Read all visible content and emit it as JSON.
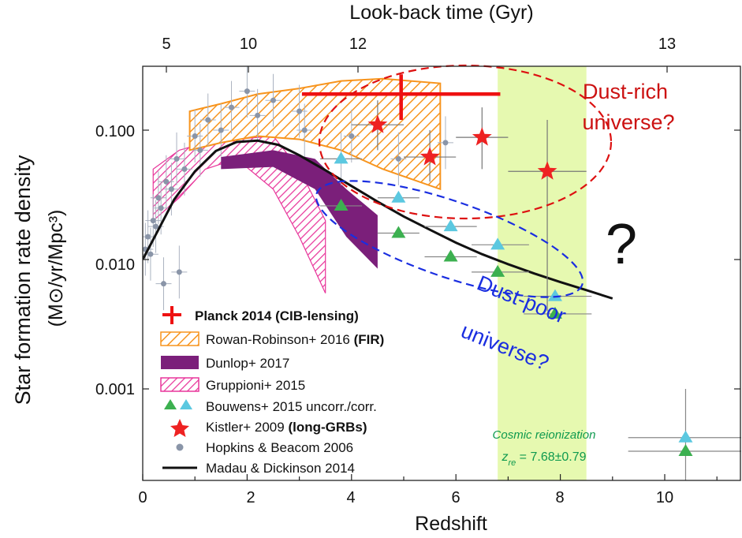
{
  "chart_data": {
    "type": "scatter",
    "title": "",
    "xlabel": "Redshift",
    "ylabel_main": "Star formation rate density",
    "ylabel_units": "(M⊙/yr/Mpc³)",
    "top_axis_label": "Look-back time (Gyr)",
    "xlim": [
      0,
      11.5
    ],
    "ylim": [
      0.00013,
      0.3
    ],
    "y_scale": "log",
    "x_ticks": [
      "0",
      "2",
      "4",
      "6",
      "8",
      "10"
    ],
    "y_ticks": [
      "0.001",
      "0.010",
      "0.100"
    ],
    "top_ticks": [
      "5",
      "10",
      "12",
      "13"
    ],
    "grid": false,
    "legend_position": "bottom-left",
    "reionization_band": {
      "x": [
        6.8,
        8.5
      ],
      "color": "#e6f9b0"
    },
    "series": [
      {
        "name": "Planck 2014 (CIB-lensing)",
        "marker": "cross",
        "color": "#ee1111",
        "points": [
          {
            "x": 4.95,
            "y": 0.19,
            "xlo": 3.05,
            "xhi": 6.85,
            "ylo": 0.12,
            "yhi": 0.27
          }
        ]
      },
      {
        "name": "Rowan-Robinson+ 2016",
        "name_suffix": "(FIR)",
        "marker": "hatched-band",
        "color": "#f7941d",
        "upper": [
          [
            0.9,
            0.14
          ],
          [
            1.5,
            0.16
          ],
          [
            2.2,
            0.19
          ],
          [
            3.0,
            0.21
          ],
          [
            3.8,
            0.24
          ],
          [
            4.6,
            0.25
          ],
          [
            5.7,
            0.23
          ]
        ],
        "lower": [
          [
            0.9,
            0.07
          ],
          [
            1.5,
            0.08
          ],
          [
            2.2,
            0.09
          ],
          [
            3.0,
            0.085
          ],
          [
            3.8,
            0.07
          ],
          [
            4.6,
            0.05
          ],
          [
            5.7,
            0.035
          ]
        ]
      },
      {
        "name": "Dunlop+ 2017",
        "marker": "band",
        "color": "#7b1f7a",
        "upper": [
          [
            1.5,
            0.062
          ],
          [
            2.5,
            0.07
          ],
          [
            3.3,
            0.06
          ],
          [
            3.9,
            0.035
          ],
          [
            4.5,
            0.022
          ]
        ],
        "lower": [
          [
            1.5,
            0.05
          ],
          [
            2.5,
            0.052
          ],
          [
            3.3,
            0.035
          ],
          [
            3.9,
            0.015
          ],
          [
            4.5,
            0.0085
          ]
        ]
      },
      {
        "name": "Gruppioni+ 2015",
        "marker": "hatched-band",
        "color": "#e8369b",
        "upper": [
          [
            0.2,
            0.05
          ],
          [
            0.7,
            0.07
          ],
          [
            1.2,
            0.08
          ],
          [
            1.8,
            0.085
          ],
          [
            2.5,
            0.09
          ],
          [
            3.0,
            0.05
          ],
          [
            3.5,
            0.02
          ]
        ],
        "lower": [
          [
            0.2,
            0.02
          ],
          [
            0.7,
            0.03
          ],
          [
            1.2,
            0.05
          ],
          [
            1.8,
            0.06
          ],
          [
            2.5,
            0.035
          ],
          [
            3.0,
            0.015
          ],
          [
            3.5,
            0.0055
          ]
        ]
      },
      {
        "name": "Bouwens+ 2015 uncorr./corr.",
        "marker": "triangle",
        "colors": [
          "#3cb050",
          "#5bc8e0"
        ],
        "uncorrected": [
          {
            "x": 3.8,
            "y": 0.026,
            "xlo": 3.4,
            "xhi": 4.2
          },
          {
            "x": 4.9,
            "y": 0.016,
            "xlo": 4.5,
            "xhi": 5.3
          },
          {
            "x": 5.9,
            "y": 0.0105,
            "xlo": 5.4,
            "xhi": 6.4
          },
          {
            "x": 6.8,
            "y": 0.008,
            "xlo": 6.3,
            "xhi": 7.4
          },
          {
            "x": 7.9,
            "y": 0.0038,
            "xlo": 7.3,
            "xhi": 8.6
          },
          {
            "x": 10.4,
            "y": 0.00033,
            "xlo": 9.3,
            "xhi": 11.5
          }
        ],
        "corrected": [
          {
            "x": 3.8,
            "y": 0.06,
            "xlo": 3.4,
            "xhi": 4.2
          },
          {
            "x": 4.9,
            "y": 0.03,
            "xlo": 4.5,
            "xhi": 5.3
          },
          {
            "x": 5.9,
            "y": 0.018,
            "xlo": 5.4,
            "xhi": 6.4
          },
          {
            "x": 6.8,
            "y": 0.013,
            "xlo": 6.3,
            "xhi": 7.4
          },
          {
            "x": 7.9,
            "y": 0.0052,
            "xlo": 7.3,
            "xhi": 8.6
          },
          {
            "x": 10.4,
            "y": 0.00042,
            "xlo": 9.3,
            "xhi": 11.5,
            "ylo": 0.00018,
            "yhi": 0.001
          }
        ]
      },
      {
        "name": "Kistler+ 2009",
        "name_suffix": "(long-GRBs)",
        "marker": "star",
        "color": "#ee2222",
        "points": [
          {
            "x": 4.5,
            "y": 0.11,
            "xlo": 4.0,
            "xhi": 5.0,
            "ylo": 0.07,
            "yhi": 0.17
          },
          {
            "x": 5.5,
            "y": 0.062,
            "xlo": 5.0,
            "xhi": 6.0,
            "ylo": 0.04,
            "yhi": 0.1
          },
          {
            "x": 6.5,
            "y": 0.088,
            "xlo": 6.0,
            "xhi": 7.0,
            "ylo": 0.05,
            "yhi": 0.15
          },
          {
            "x": 7.75,
            "y": 0.048,
            "xlo": 7.0,
            "xhi": 8.5,
            "ylo": 0.004,
            "yhi": 0.12
          }
        ]
      },
      {
        "name": "Hopkins & Beacom 2006",
        "marker": "circle",
        "color": "#8a95a8",
        "points": [
          {
            "x": 0.05,
            "y": 0.012
          },
          {
            "x": 0.1,
            "y": 0.015
          },
          {
            "x": 0.15,
            "y": 0.011
          },
          {
            "x": 0.2,
            "y": 0.02
          },
          {
            "x": 0.25,
            "y": 0.018
          },
          {
            "x": 0.3,
            "y": 0.03
          },
          {
            "x": 0.35,
            "y": 0.025
          },
          {
            "x": 0.45,
            "y": 0.04
          },
          {
            "x": 0.55,
            "y": 0.035
          },
          {
            "x": 0.65,
            "y": 0.06
          },
          {
            "x": 0.8,
            "y": 0.05
          },
          {
            "x": 1.0,
            "y": 0.09
          },
          {
            "x": 1.1,
            "y": 0.07
          },
          {
            "x": 1.25,
            "y": 0.12
          },
          {
            "x": 1.5,
            "y": 0.1
          },
          {
            "x": 1.7,
            "y": 0.15
          },
          {
            "x": 2.0,
            "y": 0.2
          },
          {
            "x": 2.2,
            "y": 0.13
          },
          {
            "x": 2.5,
            "y": 0.17
          },
          {
            "x": 3.0,
            "y": 0.14
          },
          {
            "x": 3.1,
            "y": 0.1
          },
          {
            "x": 3.8,
            "y": 0.06
          },
          {
            "x": 4.0,
            "y": 0.09
          },
          {
            "x": 4.9,
            "y": 0.06
          },
          {
            "x": 5.8,
            "y": 0.08
          },
          {
            "x": 0.7,
            "y": 0.008
          },
          {
            "x": 0.4,
            "y": 0.0065
          }
        ]
      },
      {
        "name": "Madau & Dickinson 2014",
        "marker": "line",
        "color": "#111111",
        "x": [
          0,
          0.3,
          0.6,
          1.0,
          1.4,
          1.8,
          2.2,
          2.6,
          3.0,
          3.5,
          4.0,
          4.5,
          5.0,
          5.5,
          6.0,
          6.5,
          7.0,
          7.5,
          8.0,
          8.5,
          9.0
        ],
        "y": [
          0.01,
          0.017,
          0.029,
          0.048,
          0.069,
          0.081,
          0.083,
          0.077,
          0.064,
          0.049,
          0.037,
          0.028,
          0.0215,
          0.017,
          0.0135,
          0.011,
          0.0092,
          0.0078,
          0.0067,
          0.0058,
          0.005
        ]
      }
    ],
    "annotations": {
      "dust_rich": {
        "text_line1": "Dust-rich",
        "text_line2": "universe?",
        "color": "#cc1111"
      },
      "dust_poor": {
        "text_line1": "Dust-poor",
        "text_line2": "universe?",
        "color": "#1a2ee0"
      },
      "question": "?",
      "reionization_title": "Cosmic reionization",
      "reionization_symbol": "z",
      "reionization_subscript": "re",
      "reionization_value": " = 7.68±0.79",
      "reionization_color": "#0f9a4f"
    }
  }
}
